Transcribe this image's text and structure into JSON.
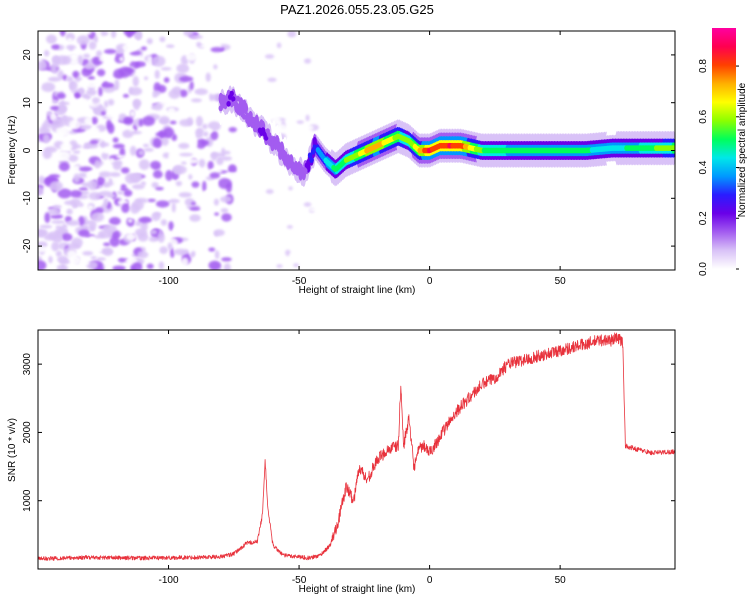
{
  "title": "PAZ1.2026.055.23.05.G25",
  "chart_data": [
    {
      "type": "heatmap",
      "xlabel": "Height of straight line (km)",
      "ylabel": "Frequency (Hz)",
      "xlim": [
        -150,
        94
      ],
      "ylim": [
        -25,
        25
      ],
      "xticks": [
        -100,
        -50,
        0,
        50
      ],
      "xtick_labels": [
        "-100",
        "-50",
        "0",
        "50"
      ],
      "yticks": [
        -20,
        -10,
        0,
        10,
        20
      ],
      "ytick_labels": [
        "-20",
        "-10",
        "0",
        "10",
        "20"
      ],
      "colorbar": {
        "label": "Normalized spectral amplitude",
        "range": [
          0,
          0.95
        ],
        "ticks": [
          0,
          0.2,
          0.4,
          0.6,
          0.8
        ],
        "tick_labels": [
          "0.0",
          "0.2",
          "0.4",
          "0.6",
          "0.8"
        ],
        "colors": [
          "#ffffff",
          "#d9c2f7",
          "#a35cf0",
          "#6a00e8",
          "#2a1cff",
          "#0099ff",
          "#00e8e8",
          "#00ff5a",
          "#8cff00",
          "#ffff00",
          "#ffb000",
          "#ff4000",
          "#ff0050",
          "#ff00a0"
        ]
      },
      "ridge": {
        "x": [
          -80,
          -76,
          -72,
          -68,
          -64,
          -60,
          -56,
          -52,
          -48,
          -44,
          -40,
          -36,
          -32,
          -28,
          -24,
          -20,
          -16,
          -12,
          -8,
          -4,
          0,
          4,
          8,
          12,
          20,
          30,
          40,
          50,
          60,
          70,
          80,
          94
        ],
        "freq": [
          10,
          11,
          9,
          6,
          4,
          2,
          -1,
          -3,
          -5,
          1,
          -2,
          -4,
          -2,
          -1,
          0,
          1,
          2,
          3,
          2,
          0,
          0,
          1,
          1,
          1,
          0,
          0,
          0,
          0,
          0,
          0.5,
          0.5,
          0.5
        ],
        "amplitude": [
          0.1,
          0.15,
          0.1,
          0.12,
          0.14,
          0.12,
          0.1,
          0.12,
          0.1,
          0.3,
          0.4,
          0.5,
          0.55,
          0.6,
          0.7,
          0.75,
          0.65,
          0.6,
          0.55,
          0.7,
          0.85,
          0.8,
          0.85,
          0.8,
          0.55,
          0.5,
          0.5,
          0.5,
          0.48,
          0.45,
          0.5,
          0.6
        ]
      },
      "noise_region_x": [
        -150,
        -75
      ]
    },
    {
      "type": "line",
      "xlabel": "Height of straight line (km)",
      "ylabel": "SNR (10 * v/v)",
      "xlim": [
        -150,
        94
      ],
      "ylim": [
        0,
        3500
      ],
      "xticks": [
        -100,
        -50,
        0,
        50
      ],
      "xtick_labels": [
        "-100",
        "-50",
        "0",
        "50"
      ],
      "yticks": [
        1000,
        2000,
        3000
      ],
      "ytick_labels": [
        "1000",
        "2000",
        "3000"
      ],
      "color": "#e8323c",
      "series": [
        {
          "name": "SNR",
          "x": [
            -150,
            -130,
            -110,
            -90,
            -80,
            -75,
            -70,
            -66,
            -64,
            -63,
            -62,
            -60,
            -56,
            -50,
            -46,
            -42,
            -38,
            -35,
            -32,
            -29,
            -27,
            -24,
            -20,
            -16,
            -12,
            -11,
            -10,
            -8,
            -6,
            -4,
            -2,
            0,
            5,
            10,
            15,
            20,
            25,
            30,
            40,
            50,
            60,
            65,
            70,
            72,
            74,
            75,
            80,
            85,
            94
          ],
          "y": [
            150,
            170,
            160,
            170,
            180,
            220,
            380,
            400,
            800,
            1600,
            900,
            350,
            200,
            180,
            160,
            200,
            350,
            700,
            1200,
            1000,
            1500,
            1300,
            1600,
            1750,
            1800,
            2700,
            1800,
            2200,
            1500,
            1750,
            1800,
            1700,
            2000,
            2300,
            2500,
            2700,
            2800,
            3000,
            3100,
            3200,
            3300,
            3350,
            3350,
            3400,
            3300,
            1800,
            1750,
            1700,
            1720
          ]
        }
      ]
    }
  ]
}
